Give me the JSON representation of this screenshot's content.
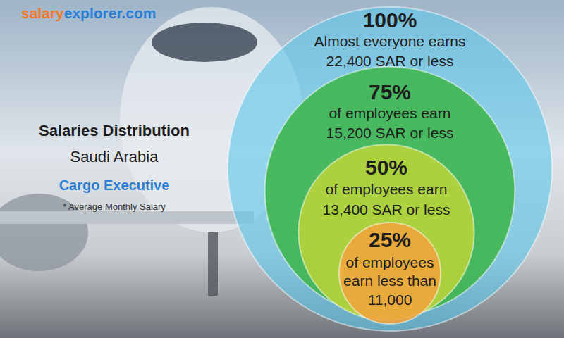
{
  "chart_data": {
    "type": "nested_circles",
    "brand": [
      "salary",
      "explorer.com"
    ],
    "title": "Salaries Distribution",
    "subtitle": "Saudi Arabia",
    "job_title": "Cargo Executive",
    "note": "* Average Monthly Salary",
    "values": [
      100,
      75,
      50,
      25
    ],
    "value_labels": [
      "100%",
      "75%",
      "50%",
      "25%"
    ],
    "data_labels": true,
    "captions": [
      [
        "Almost everyone earns"
      ],
      [
        "of employees earn"
      ],
      [
        "of employees earn"
      ],
      [
        "of employees",
        "earn less than"
      ]
    ],
    "salaries": [
      22400,
      15200,
      13400,
      11000
    ],
    "salary_labels": [
      "22,400 SAR or less",
      "15,200 SAR or less",
      "13,400 SAR or less",
      "11,000"
    ],
    "colors": [
      "#5cc6ea",
      "#3fb54c",
      "#b9d43a",
      "#f0a43a"
    ]
  }
}
